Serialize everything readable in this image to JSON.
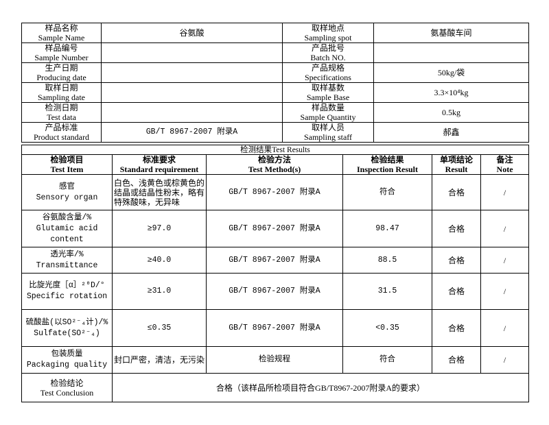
{
  "info": [
    {
      "l_cn": "样品名称",
      "l_en": "Sample Name",
      "l_val": "谷氨酸",
      "r_cn": "取样地点",
      "r_en": "Sampling spot",
      "r_val": "氨基酸车间"
    },
    {
      "l_cn": "样品编号",
      "l_en": "Sample Number",
      "l_val": "",
      "r_cn": "产品批号",
      "r_en": "Batch NO.",
      "r_val": ""
    },
    {
      "l_cn": "生产日期",
      "l_en": "Producing date",
      "l_val": "",
      "r_cn": "产品规格",
      "r_en": "Specifications",
      "r_val": "50kg/袋"
    },
    {
      "l_cn": "取样日期",
      "l_en": "Sampling date",
      "l_val": "",
      "r_cn": "取样基数",
      "r_en": "Sample Base",
      "r_val": "3.3×10⁴kg"
    },
    {
      "l_cn": "检测日期",
      "l_en": "Test data",
      "l_val": "",
      "r_cn": "样品数量",
      "r_en": "Sample Quantity",
      "r_val": "0.5kg"
    },
    {
      "l_cn": "产品标准",
      "l_en": "Product standard",
      "l_val": "GB/T 8967-2007 附录A",
      "r_cn": "取样人员",
      "r_en": "Sampling staff",
      "r_val": "郝鑫"
    }
  ],
  "results_title": "检测结果Test Results",
  "headers": [
    {
      "cn": "检验项目",
      "en": "Test Item"
    },
    {
      "cn": "标准要求",
      "en": "Standard requirement"
    },
    {
      "cn": "检验方法",
      "en": "Test Method(s)"
    },
    {
      "cn": "检验结果",
      "en": "Inspection Result"
    },
    {
      "cn": "单项结论",
      "en": "Result"
    },
    {
      "cn": "备注",
      "en": "Note"
    }
  ],
  "rows": [
    {
      "item_cn": "感官",
      "item_en": "Sensory organ",
      "req": "白色、浅黄色或棕黄色的结晶或结晶性粉末，略有特殊酸味，无异味",
      "method": "GB/T 8967-2007 附录A",
      "result": "符合",
      "conclusion": "合格",
      "note": "/"
    },
    {
      "item_cn": "谷氨酸含量/%",
      "item_en": "Glutamic acid content",
      "req": "≥97.0",
      "method": "GB/T 8967-2007 附录A",
      "result": "98.47",
      "conclusion": "合格",
      "note": "/"
    },
    {
      "item_cn": "透光率/%",
      "item_en": "Transmittance",
      "req": "≥40.0",
      "method": "GB/T 8967-2007 附录A",
      "result": "88.5",
      "conclusion": "合格",
      "note": "/"
    },
    {
      "item_cn": "比旋光度［α］²⁰D/°",
      "item_en": "Specific rotation",
      "req": "≥31.0",
      "method": "GB/T 8967-2007 附录A",
      "result": "31.5",
      "conclusion": "合格",
      "note": "/"
    },
    {
      "item_cn": "硫酸盐(以SO²⁻₄计)/%",
      "item_en": "Sulfate(SO²⁻₄)",
      "req": "≤0.35",
      "method": "GB/T 8967-2007 附录A",
      "result": "<0.35",
      "conclusion": "合格",
      "note": "/"
    },
    {
      "item_cn": "包装质量",
      "item_en": "Packaging quality",
      "req": "封口严密，清洁，无污染",
      "method": "检验规程",
      "result": "符合",
      "conclusion": "合格",
      "note": "/"
    }
  ],
  "conclusion": {
    "label_cn": "检验结论",
    "label_en": "Test Conclusion",
    "value": "合格（该样品所检项目符合GB/T8967-2007附录A的要求）"
  }
}
